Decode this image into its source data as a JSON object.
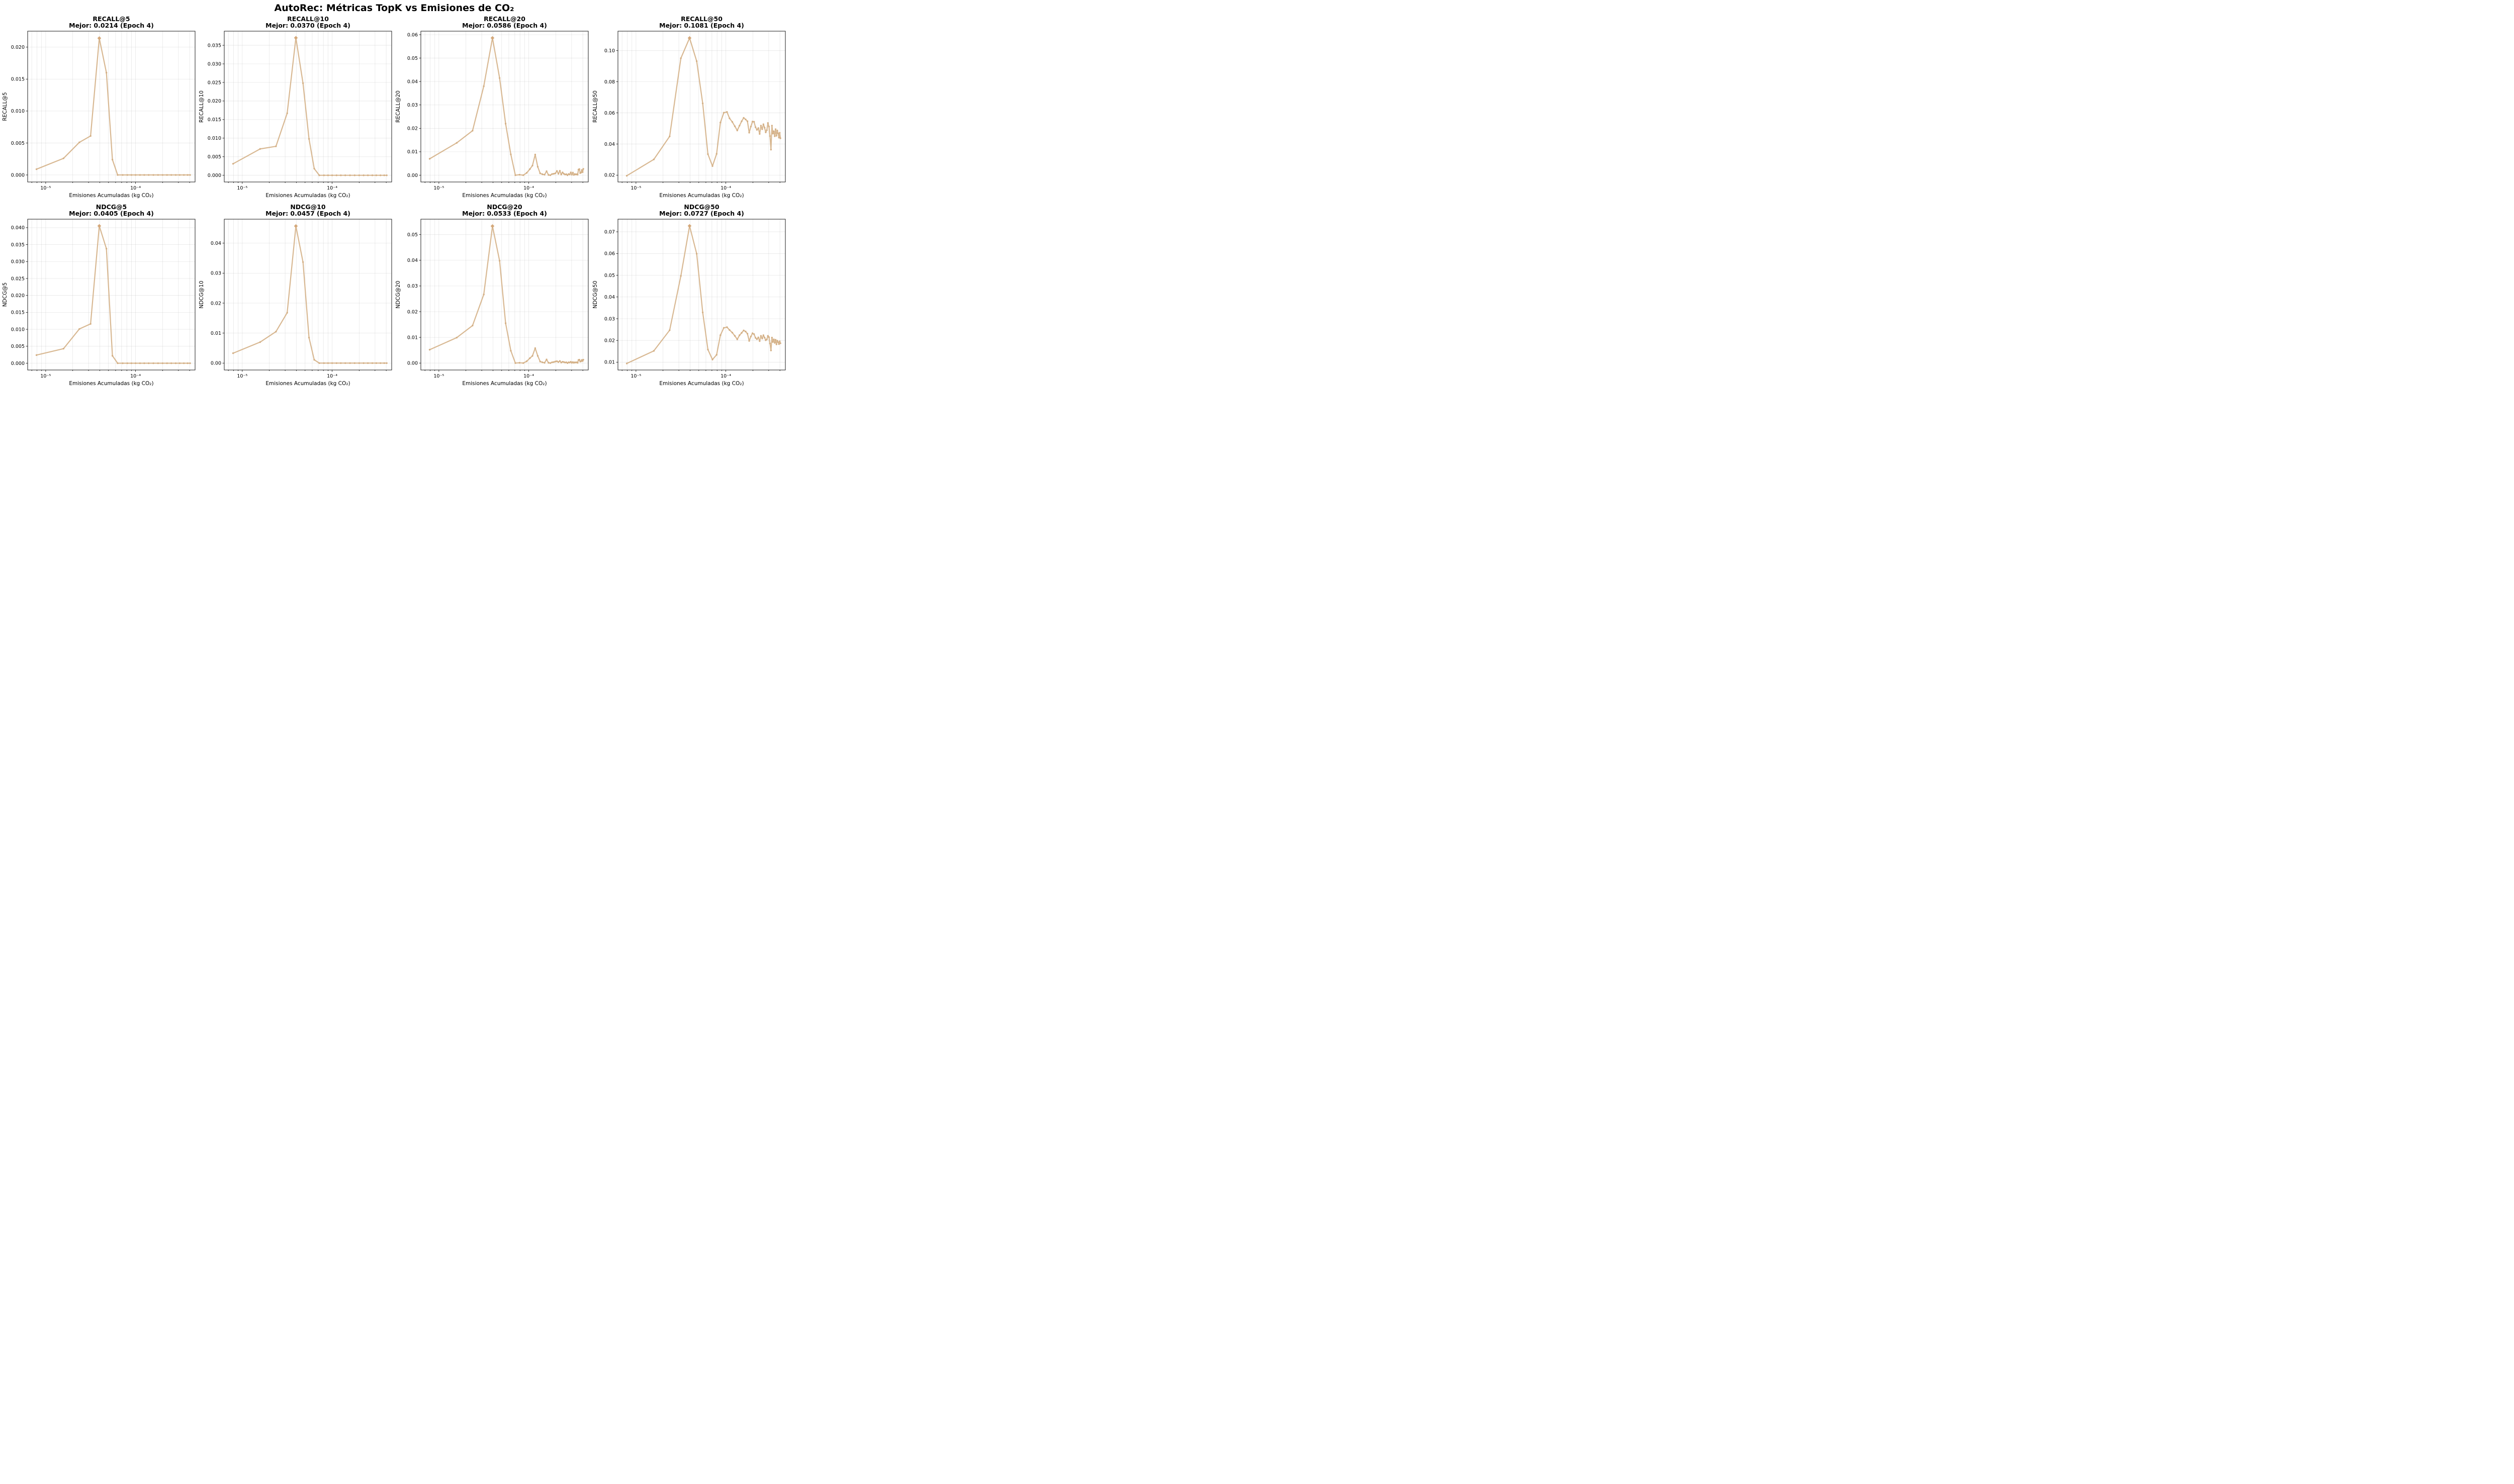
{
  "colors": {
    "line": "#D4B086",
    "marker": "#D4B086",
    "best": "#D4A87A"
  },
  "chart_data": {
    "type": "line",
    "title": "AutoRec: Métricas TopK vs Emisiones de CO₂",
    "xlabel": "Emisiones Acumuladas (kg CO₂)",
    "xscale": "log",
    "xlim": [
      6.3e-06,
      0.00046
    ],
    "x_tick_labels": [
      "10⁻⁵",
      "10⁻⁴"
    ],
    "grid": true,
    "panels": [
      {
        "metric": "RECALL@5",
        "subtitle": "Mejor: 0.0214 (Epoch 4)",
        "ylabel": "RECALL@5",
        "ylim": [
          -0.0011,
          0.0225
        ],
        "yticks": [
          0.0,
          0.005,
          0.01,
          0.015,
          0.02
        ],
        "ytick_labels": [
          "0.000",
          "0.005",
          "0.010",
          "0.015",
          "0.020"
        ],
        "x": [
          7.9e-06,
          1.58e-05,
          2.37e-05,
          3.16e-05,
          3.95e-05,
          4.74e-05,
          5.53e-05,
          6.32e-05,
          7.2e-05,
          8.1e-05,
          9e-05,
          0.0001,
          0.000112,
          0.000125,
          0.00014,
          0.000158,
          0.000178,
          0.0002,
          0.000224,
          0.00025,
          0.00028,
          0.00031,
          0.000345,
          0.00038,
          0.000405
        ],
        "y": [
          0.0009,
          0.0026,
          0.0051,
          0.0061,
          0.0214,
          0.016,
          0.0024,
          0,
          0,
          0,
          0,
          0,
          0,
          0,
          0,
          0,
          0,
          0,
          0,
          0,
          0,
          0,
          0,
          0,
          0
        ],
        "best": {
          "epoch": 4,
          "x": 3.95e-05,
          "y": 0.0214
        }
      },
      {
        "metric": "RECALL@10",
        "subtitle": "Mejor: 0.0370 (Epoch 4)",
        "ylabel": "RECALL@10",
        "ylim": [
          -0.0018,
          0.0388
        ],
        "yticks": [
          0.0,
          0.005,
          0.01,
          0.015,
          0.02,
          0.025,
          0.03,
          0.035
        ],
        "ytick_labels": [
          "0.000",
          "0.005",
          "0.010",
          "0.015",
          "0.020",
          "0.025",
          "0.030",
          "0.035"
        ],
        "x": [
          7.9e-06,
          1.58e-05,
          2.37e-05,
          3.16e-05,
          3.95e-05,
          4.74e-05,
          5.53e-05,
          6.32e-05,
          7.2e-05,
          8.1e-05,
          9e-05,
          0.0001,
          0.000112,
          0.000125,
          0.00014,
          0.000158,
          0.000178,
          0.0002,
          0.000224,
          0.00025,
          0.00028,
          0.00031,
          0.000345,
          0.00038,
          0.000405
        ],
        "y": [
          0.0031,
          0.0071,
          0.0078,
          0.0167,
          0.037,
          0.0248,
          0.0098,
          0.0018,
          0,
          0,
          0,
          0,
          0,
          0,
          0,
          0,
          0,
          0,
          0,
          0,
          0,
          0,
          0,
          0,
          0
        ],
        "best": {
          "epoch": 4,
          "x": 3.95e-05,
          "y": 0.037
        }
      },
      {
        "metric": "RECALL@20",
        "subtitle": "Mejor: 0.0586 (Epoch 4)",
        "ylabel": "RECALL@20",
        "ylim": [
          -0.0029,
          0.0615
        ],
        "yticks": [
          0.0,
          0.01,
          0.02,
          0.03,
          0.04,
          0.05,
          0.06
        ],
        "ytick_labels": [
          "0.00",
          "0.01",
          "0.02",
          "0.03",
          "0.04",
          "0.05",
          "0.06"
        ],
        "x": [
          7.9e-06,
          1.58e-05,
          2.37e-05,
          3.16e-05,
          3.95e-05,
          4.74e-05,
          5.53e-05,
          6.32e-05,
          7.1e-05,
          7.9e-05,
          8.7e-05,
          9.5e-05,
          0.000103,
          0.00011,
          0.000118,
          0.000126,
          0.000134,
          0.000142,
          0.00015,
          0.000158,
          0.000166,
          0.000174,
          0.000182,
          0.00019,
          0.000198,
          0.000206,
          0.000214,
          0.000222,
          0.00023,
          0.000238,
          0.000246,
          0.000254,
          0.000262,
          0.00027,
          0.000278,
          0.000286,
          0.000294,
          0.000302,
          0.00031,
          0.000318,
          0.000326,
          0.000334,
          0.000342,
          0.00035,
          0.000358,
          0.000366,
          0.000374,
          0.000382,
          0.00039,
          0.000398,
          0.000405
        ],
        "y": [
          0.007,
          0.0138,
          0.019,
          0.038,
          0.0586,
          0.0415,
          0.022,
          0.0089,
          0.0,
          0.0002,
          0.0,
          0.001,
          0.0026,
          0.0041,
          0.0088,
          0.0036,
          0.0008,
          0.0004,
          0.0002,
          0.0017,
          0.0001,
          0.0,
          0.0005,
          0.0006,
          0.0008,
          0.0018,
          0.0006,
          0.0019,
          0.0003,
          0.0012,
          0.0006,
          0.0003,
          0.0004,
          0.0,
          0.0005,
          0.0003,
          0.0012,
          0.0002,
          0.0011,
          0.0001,
          0.0005,
          0.0003,
          0.0004,
          0.0002,
          0.0024,
          0.0026,
          0.0009,
          0.0011,
          0.0022,
          0.0013,
          0.0027
        ],
        "best": {
          "epoch": 4,
          "x": 3.95e-05,
          "y": 0.0586
        }
      },
      {
        "metric": "RECALL@50",
        "subtitle": "Mejor: 0.1081 (Epoch 4)",
        "ylabel": "RECALL@50",
        "ylim": [
          0.0156,
          0.1125
        ],
        "yticks": [
          0.02,
          0.04,
          0.06,
          0.08,
          0.1
        ],
        "ytick_labels": [
          "0.02",
          "0.04",
          "0.06",
          "0.08",
          "0.10"
        ],
        "x": [
          7.9e-06,
          1.58e-05,
          2.37e-05,
          3.16e-05,
          3.95e-05,
          4.74e-05,
          5.53e-05,
          6.32e-05,
          7.1e-05,
          7.9e-05,
          8.7e-05,
          9.5e-05,
          0.000103,
          0.00011,
          0.000118,
          0.000126,
          0.000134,
          0.000142,
          0.00015,
          0.000158,
          0.000166,
          0.000174,
          0.000182,
          0.00019,
          0.000198,
          0.000206,
          0.000214,
          0.000222,
          0.00023,
          0.000238,
          0.000246,
          0.000254,
          0.000262,
          0.00027,
          0.000278,
          0.000286,
          0.000294,
          0.000302,
          0.00031,
          0.000318,
          0.000326,
          0.000334,
          0.000342,
          0.00035,
          0.000358,
          0.000366,
          0.000374,
          0.000382,
          0.00039,
          0.000398,
          0.000405
        ],
        "y": [
          0.0196,
          0.0301,
          0.0449,
          0.0951,
          0.1081,
          0.0932,
          0.0661,
          0.0335,
          0.0258,
          0.0337,
          0.0538,
          0.0601,
          0.0606,
          0.0565,
          0.0542,
          0.0514,
          0.0487,
          0.0518,
          0.0546,
          0.0568,
          0.0558,
          0.0546,
          0.0473,
          0.0512,
          0.0544,
          0.0543,
          0.0508,
          0.0491,
          0.0502,
          0.0465,
          0.0518,
          0.0495,
          0.0527,
          0.0505,
          0.0475,
          0.0489,
          0.0535,
          0.0512,
          0.0451,
          0.0364,
          0.0518,
          0.0467,
          0.0482,
          0.045,
          0.0495,
          0.0453,
          0.0487,
          0.0468,
          0.0441,
          0.0472,
          0.0437
        ],
        "best": {
          "epoch": 4,
          "x": 3.95e-05,
          "y": 0.1081
        }
      },
      {
        "metric": "NDCG@5",
        "subtitle": "Mejor: 0.0405 (Epoch 4)",
        "ylabel": "NDCG@5",
        "ylim": [
          -0.002,
          0.0425
        ],
        "yticks": [
          0.0,
          0.005,
          0.01,
          0.015,
          0.02,
          0.025,
          0.03,
          0.035,
          0.04
        ],
        "ytick_labels": [
          "0.000",
          "0.005",
          "0.010",
          "0.015",
          "0.020",
          "0.025",
          "0.030",
          "0.035",
          "0.040"
        ],
        "x": [
          7.9e-06,
          1.58e-05,
          2.37e-05,
          3.16e-05,
          3.95e-05,
          4.74e-05,
          5.53e-05,
          6.32e-05,
          7.2e-05,
          8.1e-05,
          9e-05,
          0.0001,
          0.000112,
          0.000125,
          0.00014,
          0.000158,
          0.000178,
          0.0002,
          0.000224,
          0.00025,
          0.00028,
          0.00031,
          0.000345,
          0.00038,
          0.000405
        ],
        "y": [
          0.0024,
          0.0043,
          0.0101,
          0.0116,
          0.0405,
          0.0338,
          0.0022,
          0,
          0,
          0,
          0,
          0,
          0,
          0,
          0,
          0,
          0,
          0,
          0,
          0,
          0,
          0,
          0,
          0,
          0
        ],
        "best": {
          "epoch": 4,
          "x": 3.95e-05,
          "y": 0.0405
        }
      },
      {
        "metric": "NDCG@10",
        "subtitle": "Mejor: 0.0457 (Epoch 4)",
        "ylabel": "NDCG@10",
        "ylim": [
          -0.0023,
          0.048
        ],
        "yticks": [
          0.0,
          0.01,
          0.02,
          0.03,
          0.04
        ],
        "ytick_labels": [
          "0.00",
          "0.01",
          "0.02",
          "0.03",
          "0.04"
        ],
        "x": [
          7.9e-06,
          1.58e-05,
          2.37e-05,
          3.16e-05,
          3.95e-05,
          4.74e-05,
          5.53e-05,
          6.32e-05,
          7.2e-05,
          8.1e-05,
          9e-05,
          0.0001,
          0.000112,
          0.000125,
          0.00014,
          0.000158,
          0.000178,
          0.0002,
          0.000224,
          0.00025,
          0.00028,
          0.00031,
          0.000345,
          0.00038,
          0.000405
        ],
        "y": [
          0.0033,
          0.007,
          0.0105,
          0.0168,
          0.0457,
          0.0337,
          0.0085,
          0.0011,
          0,
          0,
          0,
          0,
          0,
          0,
          0,
          0,
          0,
          0,
          0,
          0,
          0,
          0,
          0,
          0,
          0
        ],
        "best": {
          "epoch": 4,
          "x": 3.95e-05,
          "y": 0.0457
        }
      },
      {
        "metric": "NDCG@20",
        "subtitle": "Mejor: 0.0533 (Epoch 4)",
        "ylabel": "NDCG@20",
        "ylim": [
          -0.0027,
          0.056
        ],
        "yticks": [
          0.0,
          0.01,
          0.02,
          0.03,
          0.04,
          0.05
        ],
        "ytick_labels": [
          "0.00",
          "0.01",
          "0.02",
          "0.03",
          "0.04",
          "0.05"
        ],
        "x": [
          7.9e-06,
          1.58e-05,
          2.37e-05,
          3.16e-05,
          3.95e-05,
          4.74e-05,
          5.53e-05,
          6.32e-05,
          7.1e-05,
          7.9e-05,
          8.7e-05,
          9.5e-05,
          0.000103,
          0.00011,
          0.000118,
          0.000126,
          0.000134,
          0.000142,
          0.00015,
          0.000158,
          0.000166,
          0.000174,
          0.000182,
          0.00019,
          0.000198,
          0.000206,
          0.000214,
          0.000222,
          0.00023,
          0.000238,
          0.000246,
          0.000254,
          0.000262,
          0.00027,
          0.000278,
          0.000286,
          0.000294,
          0.000302,
          0.00031,
          0.000318,
          0.000326,
          0.000334,
          0.000342,
          0.00035,
          0.000358,
          0.000366,
          0.000374,
          0.000382,
          0.00039,
          0.000398,
          0.000405
        ],
        "y": [
          0.0052,
          0.0099,
          0.0146,
          0.0267,
          0.0533,
          0.0398,
          0.0155,
          0.0048,
          0.0,
          0.0001,
          0.0,
          0.0007,
          0.0019,
          0.0028,
          0.0058,
          0.0028,
          0.0006,
          0.0003,
          0.0001,
          0.0014,
          0.0001,
          0.0,
          0.0003,
          0.0004,
          0.0006,
          0.0007,
          0.0004,
          0.0008,
          0.0002,
          0.0005,
          0.0004,
          0.0002,
          0.0003,
          0.0,
          0.0003,
          0.0002,
          0.0005,
          0.0001,
          0.0004,
          0.0001,
          0.0003,
          0.0002,
          0.0003,
          0.0001,
          0.0012,
          0.0013,
          0.0006,
          0.0007,
          0.0012,
          0.0008,
          0.0013
        ],
        "best": {
          "epoch": 4,
          "x": 3.95e-05,
          "y": 0.0533
        }
      },
      {
        "metric": "NDCG@50",
        "subtitle": "Mejor: 0.0727 (Epoch 4)",
        "ylabel": "NDCG@50",
        "ylim": [
          0.0064,
          0.0758
        ],
        "yticks": [
          0.01,
          0.02,
          0.03,
          0.04,
          0.05,
          0.06,
          0.07
        ],
        "ytick_labels": [
          "0.01",
          "0.02",
          "0.03",
          "0.04",
          "0.05",
          "0.06",
          "0.07"
        ],
        "x": [
          7.9e-06,
          1.58e-05,
          2.37e-05,
          3.16e-05,
          3.95e-05,
          4.74e-05,
          5.53e-05,
          6.32e-05,
          7.1e-05,
          7.9e-05,
          8.7e-05,
          9.5e-05,
          0.000103,
          0.00011,
          0.000118,
          0.000126,
          0.000134,
          0.000142,
          0.00015,
          0.000158,
          0.000166,
          0.000174,
          0.000182,
          0.00019,
          0.000198,
          0.000206,
          0.000214,
          0.000222,
          0.00023,
          0.000238,
          0.000246,
          0.000254,
          0.000262,
          0.00027,
          0.000278,
          0.000286,
          0.000294,
          0.000302,
          0.00031,
          0.000318,
          0.000326,
          0.000334,
          0.000342,
          0.00035,
          0.000358,
          0.000366,
          0.000374,
          0.000382,
          0.00039,
          0.000398,
          0.000405
        ],
        "y": [
          0.0094,
          0.0152,
          0.0247,
          0.0497,
          0.0727,
          0.0599,
          0.0329,
          0.0158,
          0.0112,
          0.0134,
          0.0224,
          0.0258,
          0.0261,
          0.0248,
          0.0236,
          0.0221,
          0.0205,
          0.0224,
          0.0235,
          0.0246,
          0.0241,
          0.0231,
          0.0198,
          0.0218,
          0.0233,
          0.0229,
          0.0212,
          0.0206,
          0.0214,
          0.0197,
          0.0221,
          0.0209,
          0.0224,
          0.0213,
          0.0201,
          0.0205,
          0.0221,
          0.0215,
          0.0186,
          0.0154,
          0.0213,
          0.0193,
          0.0205,
          0.0189,
          0.0203,
          0.0182,
          0.0199,
          0.0192,
          0.0183,
          0.0196,
          0.0187
        ],
        "best": {
          "epoch": 4,
          "x": 3.95e-05,
          "y": 0.0727
        }
      }
    ]
  }
}
